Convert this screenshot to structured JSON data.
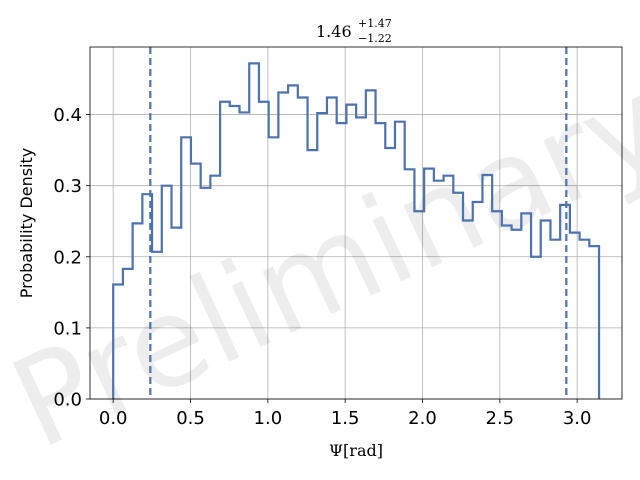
{
  "chart_data": {
    "type": "histogram",
    "title": {
      "base": "1.46",
      "sup": "+1.47",
      "sub": "−1.22"
    },
    "xlabel": {
      "symbol": "Ψ",
      "unit": "[rad]"
    },
    "ylabel": "Probability Density",
    "watermark": "Preliminary",
    "xlim": [
      -0.15,
      3.29
    ],
    "ylim": [
      0.0,
      0.495
    ],
    "xticks": [
      0.0,
      0.5,
      1.0,
      1.5,
      2.0,
      2.5,
      3.0
    ],
    "xtick_labels": [
      "0.0",
      "0.5",
      "1.0",
      "1.5",
      "2.0",
      "2.5",
      "3.0"
    ],
    "yticks": [
      0.0,
      0.1,
      0.2,
      0.3,
      0.4
    ],
    "ytick_labels": [
      "0.0",
      "0.1",
      "0.2",
      "0.3",
      "0.4"
    ],
    "grid": true,
    "line_color": "#4c72b0",
    "bin_edges": [
      0.0,
      0.0628,
      0.1257,
      0.1885,
      0.2513,
      0.3142,
      0.377,
      0.4398,
      0.5027,
      0.5655,
      0.6283,
      0.6912,
      0.754,
      0.8168,
      0.8796,
      0.9425,
      1.0053,
      1.0681,
      1.131,
      1.1938,
      1.2566,
      1.3195,
      1.3823,
      1.4451,
      1.508,
      1.5708,
      1.6336,
      1.6965,
      1.7593,
      1.8221,
      1.885,
      1.9478,
      2.0106,
      2.0735,
      2.1363,
      2.1991,
      2.2619,
      2.3248,
      2.3876,
      2.4504,
      2.5133,
      2.5761,
      2.6389,
      2.7018,
      2.7646,
      2.8274,
      2.8903,
      2.9531,
      3.0159,
      3.0788,
      3.1416
    ],
    "density": [
      0.161,
      0.183,
      0.247,
      0.288,
      0.207,
      0.3,
      0.241,
      0.368,
      0.331,
      0.297,
      0.314,
      0.418,
      0.412,
      0.403,
      0.472,
      0.418,
      0.368,
      0.431,
      0.441,
      0.424,
      0.35,
      0.402,
      0.424,
      0.388,
      0.414,
      0.396,
      0.434,
      0.388,
      0.353,
      0.39,
      0.323,
      0.264,
      0.324,
      0.307,
      0.314,
      0.29,
      0.251,
      0.277,
      0.315,
      0.264,
      0.244,
      0.238,
      0.261,
      0.2,
      0.251,
      0.224,
      0.273,
      0.234,
      0.224,
      0.215
    ],
    "credible_interval": [
      0.24,
      2.93
    ]
  }
}
